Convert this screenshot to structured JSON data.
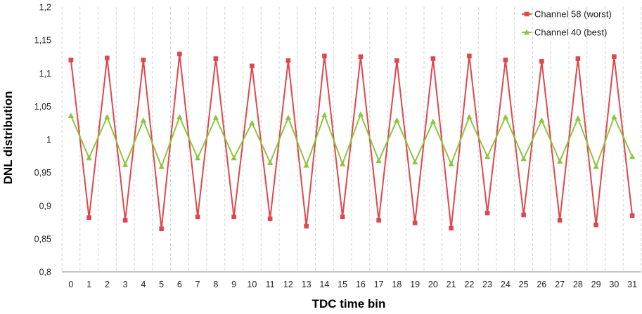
{
  "chart_data": {
    "type": "line",
    "xlabel": "TDC time bin",
    "ylabel": "DNL distribution",
    "x": [
      0,
      1,
      2,
      3,
      4,
      5,
      6,
      7,
      8,
      9,
      10,
      11,
      12,
      13,
      14,
      15,
      16,
      17,
      18,
      19,
      20,
      21,
      22,
      23,
      24,
      25,
      26,
      27,
      28,
      29,
      30,
      31
    ],
    "x_tick_labels": [
      "0",
      "1",
      "2",
      "3",
      "4",
      "5",
      "6",
      "7",
      "8",
      "9",
      "10",
      "11",
      "12",
      "13",
      "14",
      "15",
      "16",
      "17",
      "18",
      "19",
      "20",
      "21",
      "22",
      "23",
      "24",
      "25",
      "26",
      "27",
      "28",
      "29",
      "30",
      "31"
    ],
    "ylim": [
      0.8,
      1.2
    ],
    "y_ticks": [
      0.8,
      0.85,
      0.9,
      0.95,
      1.0,
      1.05,
      1.1,
      1.15,
      1.2
    ],
    "y_tick_labels": [
      "0,8",
      "0,85",
      "0,9",
      "0,95",
      "1",
      "1,05",
      "1,1",
      "1,15",
      "1,2"
    ],
    "grid": "vertical dashed",
    "legend_position": "top-right",
    "series": [
      {
        "name": "Channel 58 (worst)",
        "color": "#e0474c",
        "marker": "square",
        "values": [
          1.12,
          0.882,
          1.123,
          0.878,
          1.12,
          0.865,
          1.129,
          0.883,
          1.122,
          0.883,
          1.111,
          0.88,
          1.119,
          0.869,
          1.126,
          0.883,
          1.125,
          0.878,
          1.119,
          0.874,
          1.122,
          0.866,
          1.126,
          0.889,
          1.12,
          0.886,
          1.118,
          0.878,
          1.122,
          0.871,
          1.125,
          0.885
        ]
      },
      {
        "name": "Channel 40 (best)",
        "color": "#8cc63e",
        "marker": "triangle",
        "values": [
          1.036,
          0.972,
          1.034,
          0.962,
          1.029,
          0.959,
          1.034,
          0.972,
          1.033,
          0.972,
          1.025,
          0.965,
          1.033,
          0.961,
          1.037,
          0.963,
          1.038,
          0.968,
          1.029,
          0.966,
          1.027,
          0.963,
          1.034,
          0.974,
          1.034,
          0.971,
          1.029,
          0.967,
          1.032,
          0.959,
          1.034,
          0.974
        ]
      }
    ]
  }
}
